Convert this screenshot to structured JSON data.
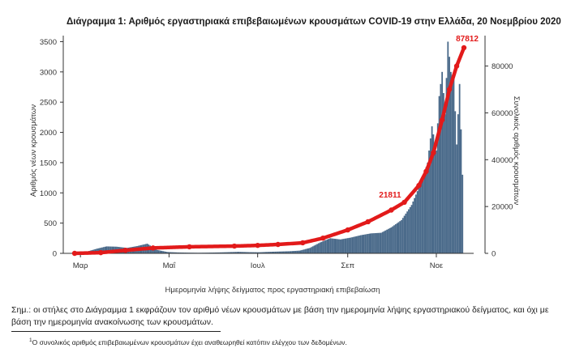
{
  "chart_data": {
    "type": "bar+line",
    "title": "Διάγραμμα 1: Αριθμός εργαστηριακά επιβεβαιωμένων κρουσμάτων COVID-19 στην Ελλάδα, 20 Νοεμβρίου 2020",
    "xlabel": "Ημερομηνία λήψης δείγματος προς εργαστηριακή επιβεβαίωση",
    "ylabel_left": "Αριθμός νέων κρουσμάτων",
    "ylabel_right": "Συνολικός αριθμός κρουσμάτων",
    "x_tick_labels": [
      "Μαρ",
      "Μαΐ",
      "Ιουλ",
      "Σεπ",
      "Νοε"
    ],
    "x_tick_dates": [
      "2020-03-01",
      "2020-05-01",
      "2020-07-01",
      "2020-09-01",
      "2020-11-01"
    ],
    "x_range": [
      "2020-02-26",
      "2020-11-20"
    ],
    "y_left_ticks": [
      0,
      500,
      1000,
      1500,
      2000,
      2500,
      3000,
      3500
    ],
    "y_left_range": [
      0,
      3600
    ],
    "y_right_ticks": [
      0,
      20000,
      40000,
      60000,
      80000
    ],
    "y_right_range": [
      0,
      93000
    ],
    "grid": false,
    "series": [
      {
        "kind": "bar",
        "axis": "left",
        "color": "#4a6a8a",
        "points": [
          [
            "2020-02-26",
            3
          ],
          [
            "2020-03-05",
            25
          ],
          [
            "2020-03-12",
            75
          ],
          [
            "2020-03-19",
            115
          ],
          [
            "2020-03-26",
            110
          ],
          [
            "2020-04-02",
            90
          ],
          [
            "2020-04-09",
            120
          ],
          [
            "2020-04-16",
            160
          ],
          [
            "2020-04-23",
            55
          ],
          [
            "2020-04-30",
            22
          ],
          [
            "2020-05-07",
            15
          ],
          [
            "2020-05-14",
            12
          ],
          [
            "2020-05-21",
            10
          ],
          [
            "2020-05-28",
            12
          ],
          [
            "2020-06-04",
            15
          ],
          [
            "2020-06-11",
            20
          ],
          [
            "2020-06-18",
            25
          ],
          [
            "2020-06-25",
            20
          ],
          [
            "2020-07-02",
            18
          ],
          [
            "2020-07-09",
            25
          ],
          [
            "2020-07-16",
            30
          ],
          [
            "2020-07-23",
            35
          ],
          [
            "2020-07-30",
            45
          ],
          [
            "2020-08-06",
            90
          ],
          [
            "2020-08-13",
            180
          ],
          [
            "2020-08-20",
            250
          ],
          [
            "2020-08-27",
            230
          ],
          [
            "2020-09-03",
            260
          ],
          [
            "2020-09-10",
            300
          ],
          [
            "2020-09-17",
            330
          ],
          [
            "2020-09-24",
            340
          ],
          [
            "2020-10-01",
            430
          ],
          [
            "2020-10-08",
            550
          ],
          [
            "2020-10-15",
            800
          ],
          [
            "2020-10-22",
            1200
          ],
          [
            "2020-10-26",
            1500
          ],
          [
            "2020-10-29",
            2100
          ],
          [
            "2020-11-01",
            1700
          ],
          [
            "2020-11-03",
            2600
          ],
          [
            "2020-11-05",
            3000
          ],
          [
            "2020-11-07",
            2300
          ],
          [
            "2020-11-09",
            3500
          ],
          [
            "2020-11-11",
            3000
          ],
          [
            "2020-11-13",
            2900
          ],
          [
            "2020-11-15",
            1800
          ],
          [
            "2020-11-17",
            2800
          ],
          [
            "2020-11-19",
            1300
          ]
        ]
      },
      {
        "kind": "line",
        "axis": "right",
        "name": "Συνολικός αριθμός κρουσμάτων",
        "color": "#e21a1a",
        "points": [
          [
            "2020-02-26",
            0
          ],
          [
            "2020-03-15",
            300
          ],
          [
            "2020-04-01",
            1300
          ],
          [
            "2020-04-20",
            2300
          ],
          [
            "2020-05-15",
            2800
          ],
          [
            "2020-06-15",
            3100
          ],
          [
            "2020-07-01",
            3400
          ],
          [
            "2020-07-15",
            3800
          ],
          [
            "2020-08-01",
            4500
          ],
          [
            "2020-08-15",
            6500
          ],
          [
            "2020-09-01",
            10000
          ],
          [
            "2020-09-15",
            13500
          ],
          [
            "2020-10-01",
            18500
          ],
          [
            "2020-10-10",
            21811
          ],
          [
            "2020-10-20",
            29000
          ],
          [
            "2020-10-25",
            35000
          ],
          [
            "2020-10-30",
            43000
          ],
          [
            "2020-11-05",
            57000
          ],
          [
            "2020-11-10",
            70000
          ],
          [
            "2020-11-15",
            80000
          ],
          [
            "2020-11-20",
            87812
          ]
        ]
      }
    ],
    "annotations": [
      {
        "text": "87812",
        "date": "2020-11-20",
        "value": 87812,
        "axis": "right"
      },
      {
        "text": "21811",
        "date": "2020-10-10",
        "value": 21811,
        "axis": "right"
      }
    ]
  },
  "note": "Σημ.: οι στήλες στο Διάγραμμα 1 εκφράζουν τον αριθμό νέων κρουσμάτων με βάση την ημερομηνία λήψης εργαστηριακού δείγματος, και όχι με βάση την ημερομηνία ανακοίνωσης των κρουσμάτων.",
  "footnote_marker": "1",
  "footnote": "Ο συνολικός αριθμός επιβεβαιωμένων κρουσμάτων έχει αναθεωρηθεί κατόπιν ελέγχου των δεδομένων."
}
